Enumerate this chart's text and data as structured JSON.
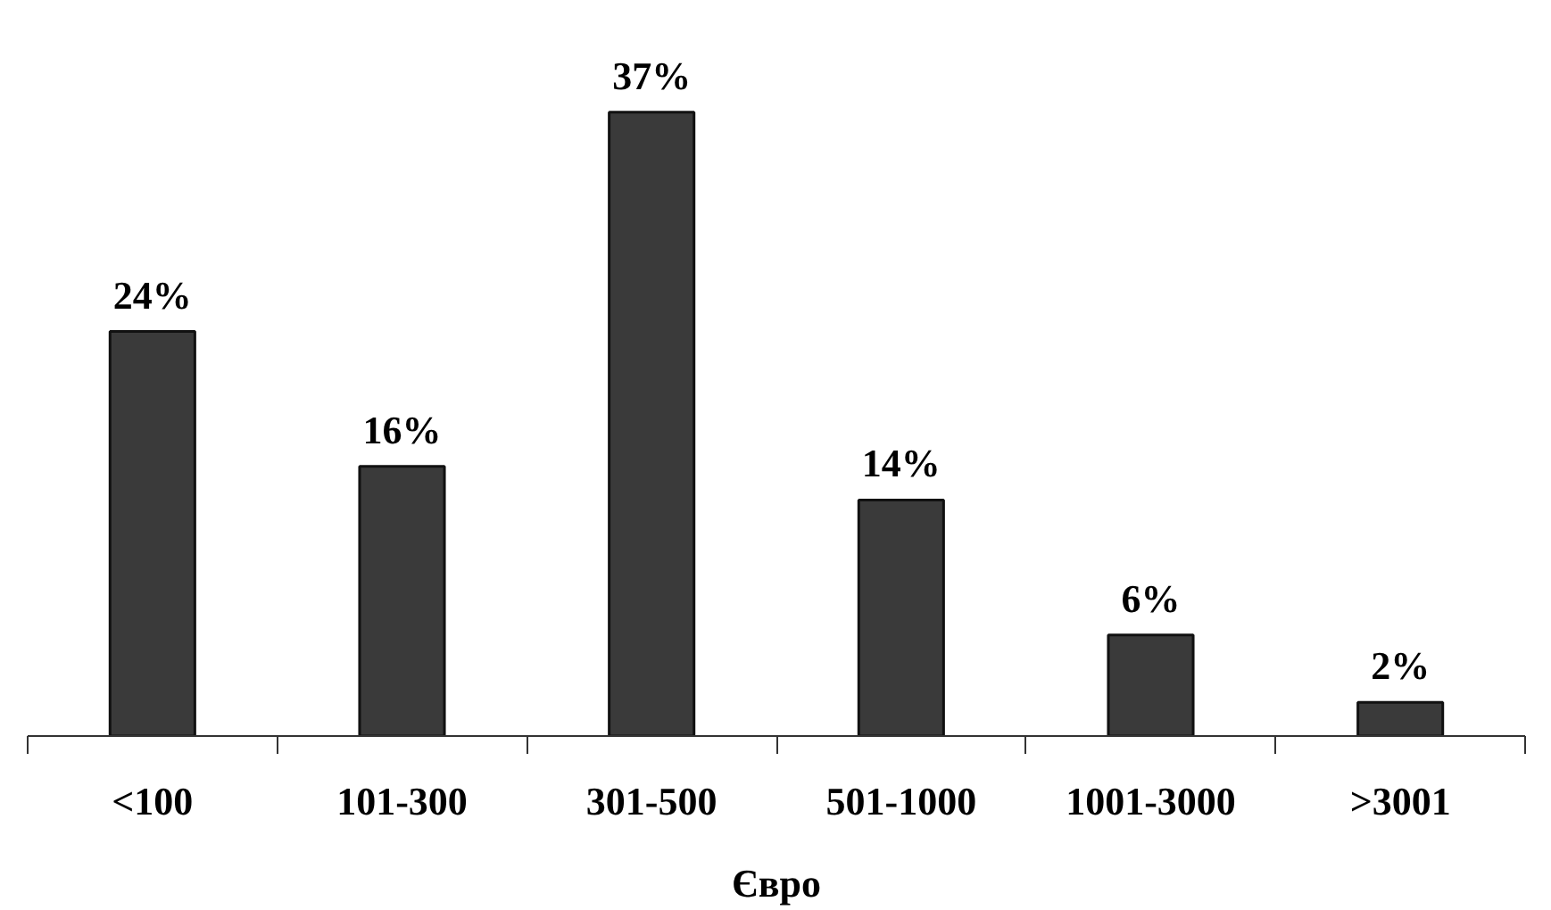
{
  "chart_data": {
    "type": "bar",
    "xlabel": "Євро",
    "categories": [
      "<100",
      "101-300",
      "301-500",
      "501-1000",
      "1001-3000",
      ">3001"
    ],
    "values": [
      24,
      16,
      37,
      14,
      6,
      2
    ],
    "value_labels": [
      "24%",
      "16%",
      "37%",
      "14%",
      "6%",
      "2%"
    ],
    "color": "#3a3a3a",
    "grid": false
  }
}
